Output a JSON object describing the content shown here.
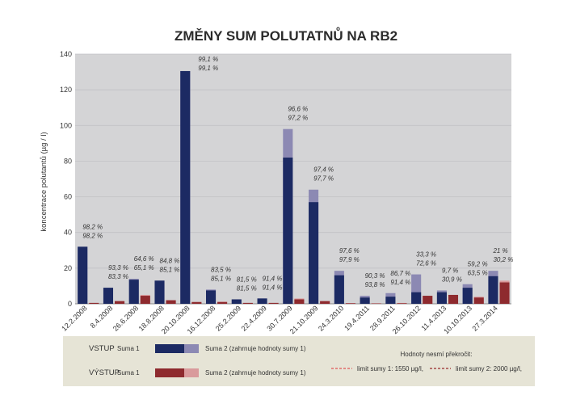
{
  "chart_data": {
    "type": "bar",
    "title": "ZMĚNY SUM POLUTATNŮ NA RB2",
    "ylabel": "koncentrace polutantů (µg / l)",
    "ylim": [
      0,
      140
    ],
    "yticks": [
      0,
      20,
      40,
      60,
      80,
      100,
      120,
      140
    ],
    "grid": true,
    "categories": [
      "12.2.2008",
      "8.4.2008",
      "26.6.2008",
      "18.8.2008",
      "20.10.2008",
      "16.12.2008",
      "25.2.2009",
      "22.4.2009",
      "30.7.2009",
      "21.10.2009",
      "24.3.2010",
      "19.4.2011",
      "28.9.2011",
      "26.10.2012",
      "11.4.2013",
      "10.10.2013",
      "27.3.2014"
    ],
    "series": [
      {
        "name": "VSTUP – Suma 1",
        "color": "#1c2a63",
        "values": [
          32,
          9,
          13.5,
          13,
          130.5,
          7.5,
          2.5,
          3,
          82,
          57,
          16,
          3.5,
          4,
          6.5,
          6.5,
          9,
          15.5
        ]
      },
      {
        "name": "VSTUP – Suma 2 (zahrnuje hodnoty sumy 1)",
        "color": "#8c89b3",
        "values": [
          32,
          9,
          14,
          13,
          130.5,
          8,
          2.5,
          3,
          98,
          64,
          18.5,
          4.5,
          6,
          16.5,
          7.5,
          11,
          18.5
        ]
      },
      {
        "name": "VÝSTUP – Suma 1",
        "color": "#8e2a2e",
        "values": [
          0.5,
          1.5,
          4.5,
          2,
          1,
          1,
          0.5,
          0.5,
          2.5,
          1.5,
          0.3,
          0.2,
          0.3,
          4.5,
          5,
          3.5,
          12
        ]
      },
      {
        "name": "VÝSTUP – Suma 2 (zahrnuje hodnoty sumy 1)",
        "color": "#d99a9c",
        "values": [
          0.5,
          1.5,
          5,
          2,
          1,
          1.2,
          0.5,
          0.5,
          3,
          1.5,
          0.4,
          0.3,
          0.5,
          4.5,
          5,
          4,
          13
        ]
      }
    ],
    "annotations": [
      [
        "98,2 %",
        "98,2 %"
      ],
      [
        "93,3 %",
        "83,3 %"
      ],
      [
        "64,6 %",
        "65,1 %"
      ],
      [
        "84,8 %",
        "85,1 %"
      ],
      [
        "99,1 %",
        "99,1 %"
      ],
      [
        "83,5 %",
        "85,1 %"
      ],
      [
        "81,5 %",
        "81,5 %"
      ],
      [
        "91,4 %",
        "91,4 %"
      ],
      [
        "96,6 %",
        "97,2 %"
      ],
      [
        "97,4 %",
        "97,7 %"
      ],
      [
        "97,6 %",
        "97,9 %"
      ],
      [
        "90,3 %",
        "93,8 %"
      ],
      [
        "86,7 %",
        "91,4 %"
      ],
      [
        "33,3 %",
        "72,6 %"
      ],
      [
        "9,7 %",
        "30,9 %"
      ],
      [
        "59,2 %",
        "63,5 %"
      ],
      [
        "21 %",
        "30,2 %"
      ]
    ],
    "legend": {
      "vstup_label": "VSTUP",
      "vystup_label": "VÝSTUP",
      "suma1_label": "Suma 1",
      "suma2_label": "Suma 2 (zahrnuje hodnoty sumy 1)",
      "limits_title": "Hodnoty nesmí překročit:",
      "limit1_label": "limit sumy 1: 1550 µg/l,",
      "limit2_label": "limit sumy 2: 2000 µg/l,",
      "limit1_color": "#e05555",
      "limit2_color": "#9a2a2e"
    },
    "plot_bg": "#d4d4d6",
    "legend_bg": "#e6e4d6"
  }
}
